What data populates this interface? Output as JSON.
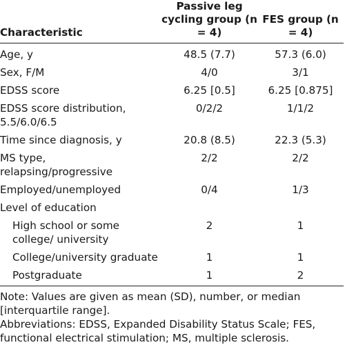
{
  "table": {
    "headers": {
      "characteristic": "Characteristic",
      "group1": "Passive leg cycling group (n = 4)",
      "group2": "FES group (n = 4)"
    },
    "rows": [
      {
        "label": "Age, y",
        "g1": "48.5 (7.7)",
        "g2": "57.3 (6.0)"
      },
      {
        "label": "Sex, F/M",
        "g1": "4/0",
        "g2": "3/1"
      },
      {
        "label": "EDSS score",
        "g1": "6.25 [0.5]",
        "g2": "6.25 [0.875]"
      },
      {
        "label": "EDSS score distribution, 5.5/6.0/6.5",
        "g1": "0/2/2",
        "g2": "1/1/2"
      },
      {
        "label": "Time since diagnosis, y",
        "g1": "20.8 (8.5)",
        "g2": "22.3 (5.3)"
      },
      {
        "label": "MS type, relapsing/progressive",
        "g1": "2/2",
        "g2": "2/2"
      },
      {
        "label": "Employed/unemployed",
        "g1": "0/4",
        "g2": "1/3"
      },
      {
        "label": "Level of education",
        "g1": "",
        "g2": ""
      },
      {
        "label": "High school or some college/ university",
        "g1": "2",
        "g2": "1"
      },
      {
        "label": "College/university graduate",
        "g1": "1",
        "g2": "1"
      },
      {
        "label": "Postgraduate",
        "g1": "1",
        "g2": "2"
      }
    ]
  },
  "notes": {
    "values": "Note: Values are given as mean (SD), number, or median [interquartile range].",
    "abbreviations": "Abbreviations: EDSS, Expanded Disability Status Scale; FES, functional electrical stimulation; MS, multiple sclerosis."
  }
}
